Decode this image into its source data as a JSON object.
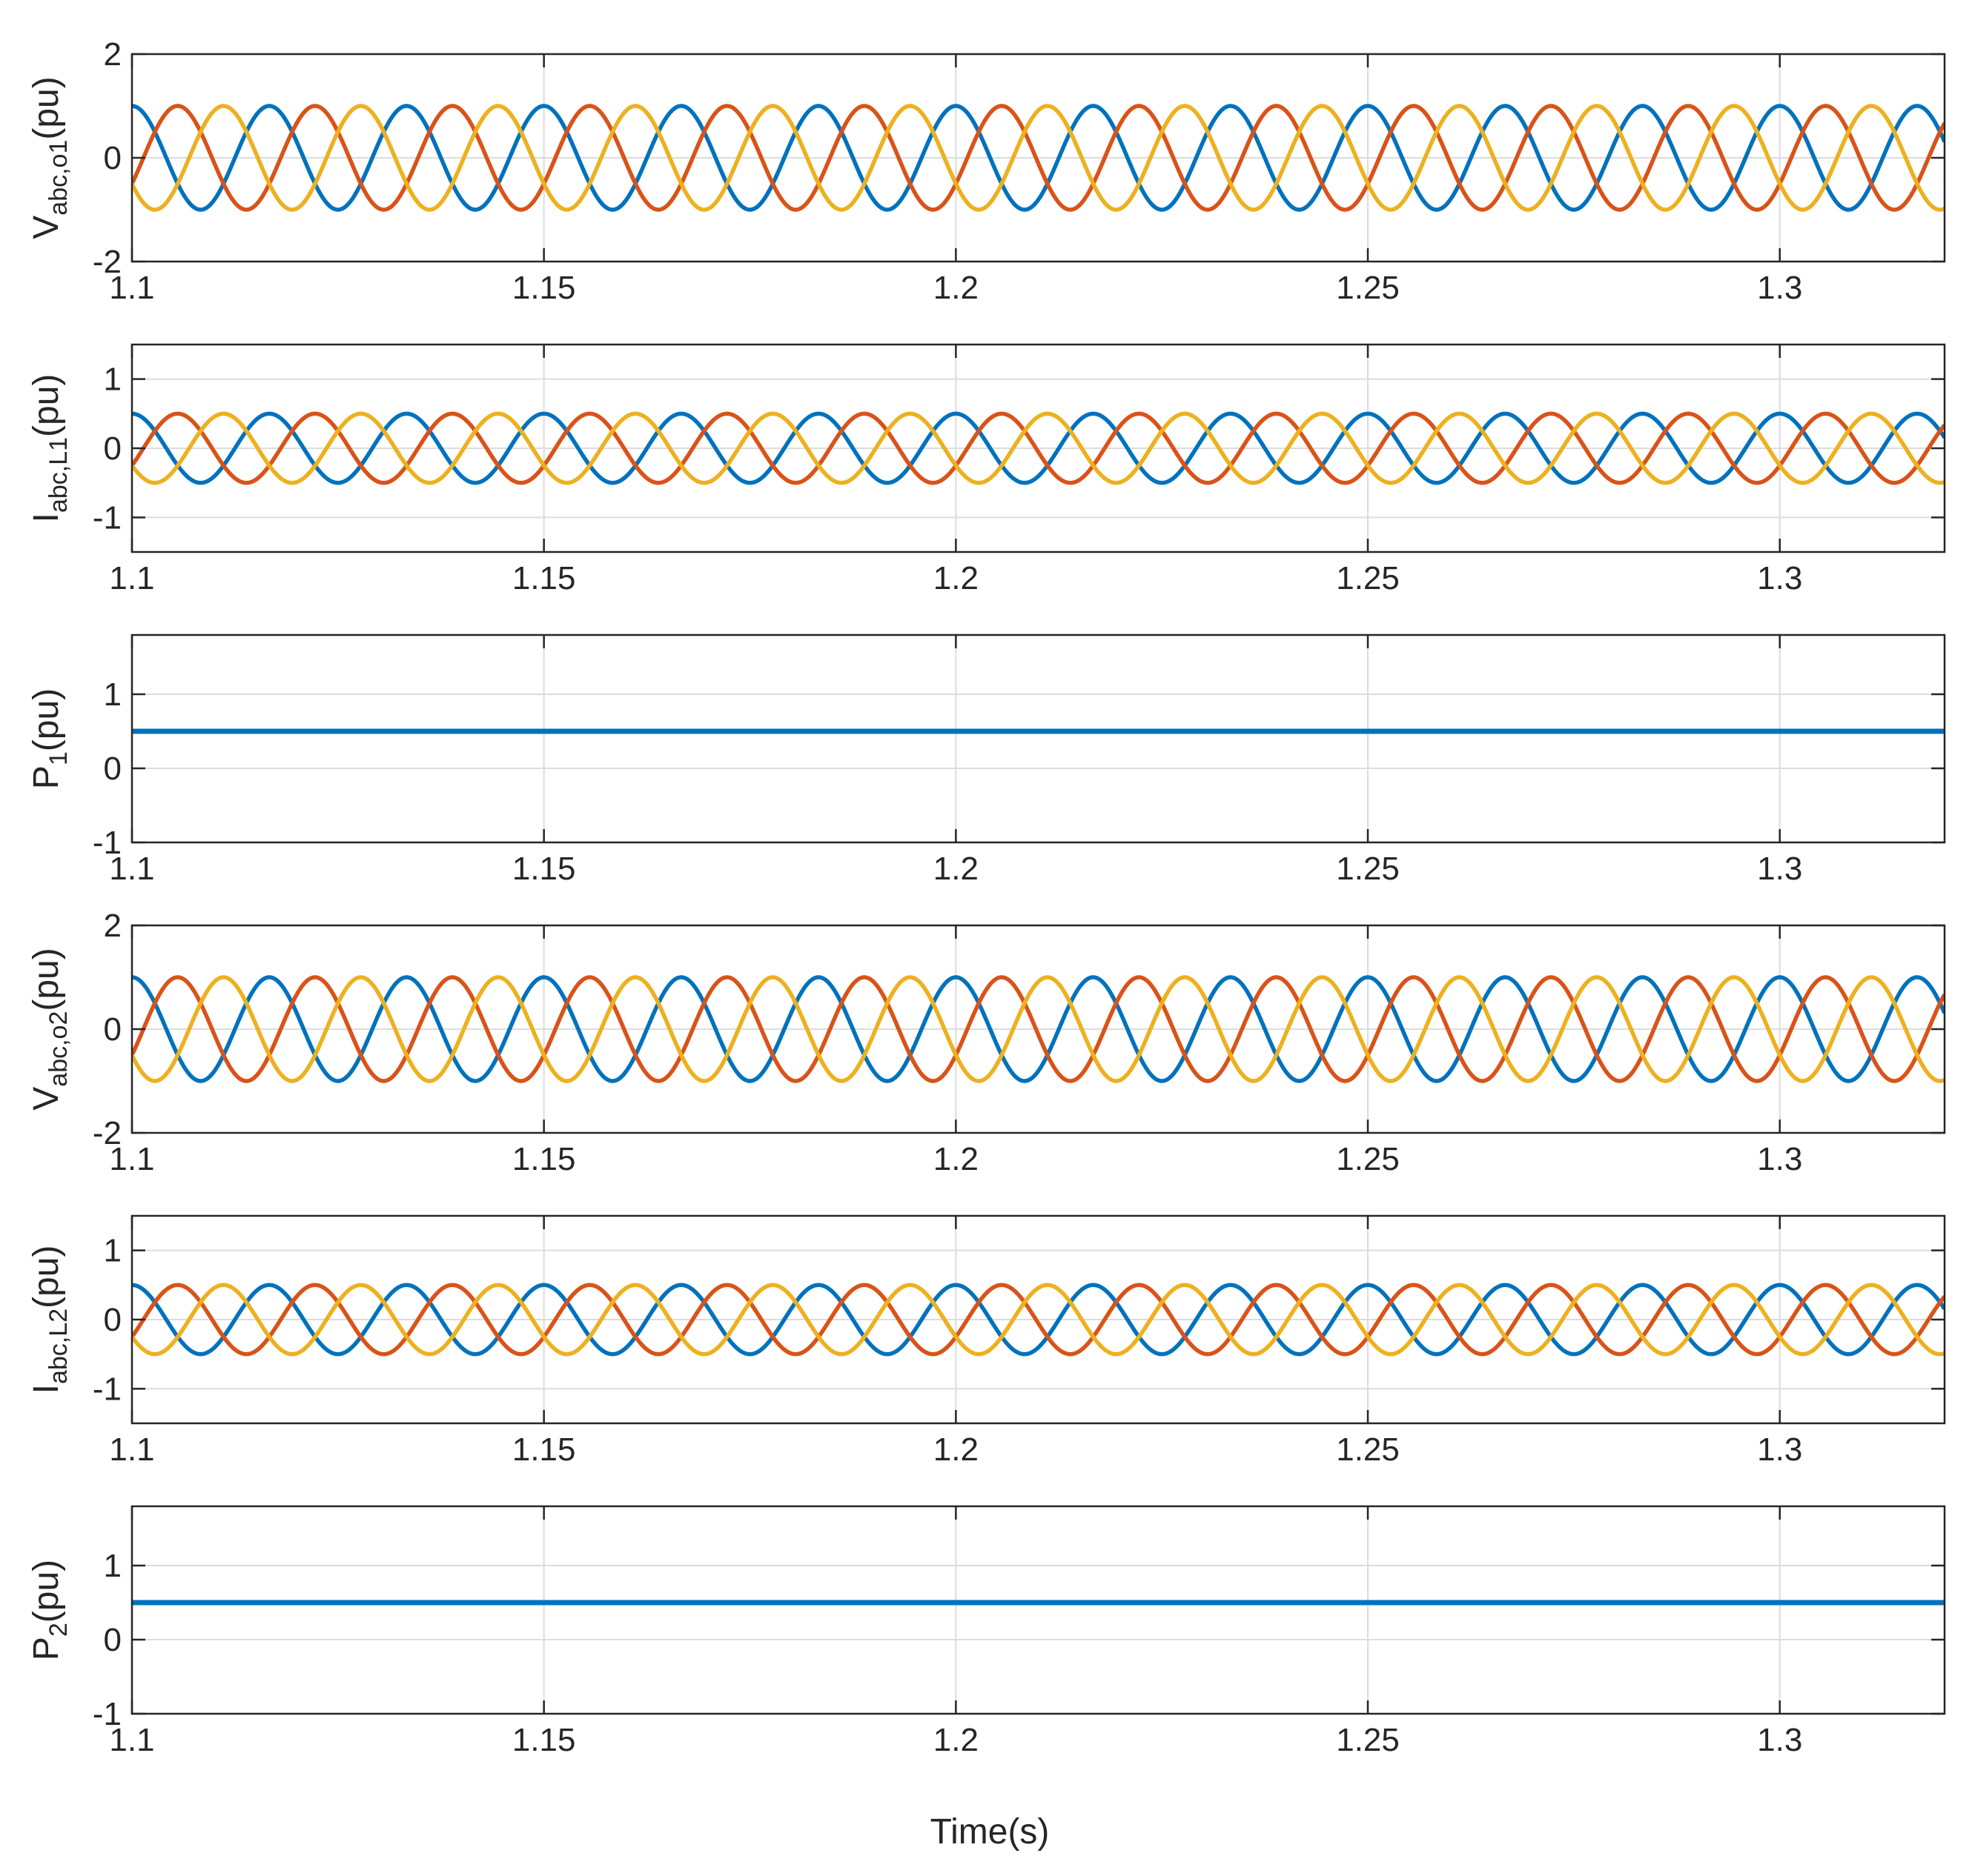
{
  "figure": {
    "xlabel": "Time(s)"
  },
  "chart_data": [
    {
      "type": "line",
      "ylabel": {
        "main": "V",
        "sub": "abc,o1",
        "tail": "(pu)"
      },
      "xlim": [
        1.1,
        1.32
      ],
      "ylim": [
        -2,
        2
      ],
      "xticks": [
        1.1,
        1.15,
        1.2,
        1.25,
        1.3
      ],
      "xtick_labels": [
        "1.1",
        "1.15",
        "1.2",
        "1.25",
        "1.3"
      ],
      "yticks": [
        -2,
        0,
        2
      ],
      "ytick_labels": [
        "-2",
        "0",
        "2"
      ],
      "grid": true,
      "legend": "none",
      "series": [
        {
          "kind": "sine",
          "amplitude": 1.0,
          "frequency_hz": 60,
          "phase_deg": 0,
          "color": "#0072BD"
        },
        {
          "kind": "sine",
          "amplitude": 1.0,
          "frequency_hz": 60,
          "phase_deg": -120,
          "color": "#D95319"
        },
        {
          "kind": "sine",
          "amplitude": 1.0,
          "frequency_hz": 60,
          "phase_deg": 120,
          "color": "#EDB120"
        }
      ]
    },
    {
      "type": "line",
      "ylabel": {
        "main": "I",
        "sub": "abc,L1",
        "tail": "(pu)"
      },
      "xlim": [
        1.1,
        1.32
      ],
      "ylim": [
        -1.5,
        1.5
      ],
      "xticks": [
        1.1,
        1.15,
        1.2,
        1.25,
        1.3
      ],
      "xtick_labels": [
        "1.1",
        "1.15",
        "1.2",
        "1.25",
        "1.3"
      ],
      "yticks": [
        -1,
        0,
        1
      ],
      "ytick_labels": [
        "-1",
        "0",
        "1"
      ],
      "grid": true,
      "legend": "none",
      "series": [
        {
          "kind": "sine",
          "amplitude": 0.5,
          "frequency_hz": 60,
          "phase_deg": 0,
          "color": "#0072BD"
        },
        {
          "kind": "sine",
          "amplitude": 0.5,
          "frequency_hz": 60,
          "phase_deg": -120,
          "color": "#D95319"
        },
        {
          "kind": "sine",
          "amplitude": 0.5,
          "frequency_hz": 60,
          "phase_deg": 120,
          "color": "#EDB120"
        }
      ]
    },
    {
      "type": "line",
      "ylabel": {
        "main": "P",
        "sub": "1",
        "tail": "(pu)"
      },
      "xlim": [
        1.1,
        1.32
      ],
      "ylim": [
        -1,
        1.8
      ],
      "xticks": [
        1.1,
        1.15,
        1.2,
        1.25,
        1.3
      ],
      "xtick_labels": [
        "1.1",
        "1.15",
        "1.2",
        "1.25",
        "1.3"
      ],
      "yticks": [
        -1,
        0,
        1
      ],
      "ytick_labels": [
        "-1",
        "0",
        "1"
      ],
      "grid": true,
      "legend": "none",
      "series": [
        {
          "kind": "constant",
          "value": 0.5,
          "color": "#0072BD"
        }
      ]
    },
    {
      "type": "line",
      "ylabel": {
        "main": "V",
        "sub": "abc,o2",
        "tail": "(pu)"
      },
      "xlim": [
        1.1,
        1.32
      ],
      "ylim": [
        -2,
        2
      ],
      "xticks": [
        1.1,
        1.15,
        1.2,
        1.25,
        1.3
      ],
      "xtick_labels": [
        "1.1",
        "1.15",
        "1.2",
        "1.25",
        "1.3"
      ],
      "yticks": [
        -2,
        0,
        2
      ],
      "ytick_labels": [
        "-2",
        "0",
        "2"
      ],
      "grid": true,
      "legend": "none",
      "series": [
        {
          "kind": "sine",
          "amplitude": 1.0,
          "frequency_hz": 60,
          "phase_deg": 0,
          "color": "#0072BD"
        },
        {
          "kind": "sine",
          "amplitude": 1.0,
          "frequency_hz": 60,
          "phase_deg": -120,
          "color": "#D95319"
        },
        {
          "kind": "sine",
          "amplitude": 1.0,
          "frequency_hz": 60,
          "phase_deg": 120,
          "color": "#EDB120"
        }
      ]
    },
    {
      "type": "line",
      "ylabel": {
        "main": "I",
        "sub": "abc,L2",
        "tail": "(pu)"
      },
      "xlim": [
        1.1,
        1.32
      ],
      "ylim": [
        -1.5,
        1.5
      ],
      "xticks": [
        1.1,
        1.15,
        1.2,
        1.25,
        1.3
      ],
      "xtick_labels": [
        "1.1",
        "1.15",
        "1.2",
        "1.25",
        "1.3"
      ],
      "yticks": [
        -1,
        0,
        1
      ],
      "ytick_labels": [
        "-1",
        "0",
        "1"
      ],
      "grid": true,
      "legend": "none",
      "series": [
        {
          "kind": "sine",
          "amplitude": 0.5,
          "frequency_hz": 60,
          "phase_deg": 0,
          "color": "#0072BD"
        },
        {
          "kind": "sine",
          "amplitude": 0.5,
          "frequency_hz": 60,
          "phase_deg": -120,
          "color": "#D95319"
        },
        {
          "kind": "sine",
          "amplitude": 0.5,
          "frequency_hz": 60,
          "phase_deg": 120,
          "color": "#EDB120"
        }
      ]
    },
    {
      "type": "line",
      "ylabel": {
        "main": "P",
        "sub": "2",
        "tail": "(pu)"
      },
      "xlim": [
        1.1,
        1.32
      ],
      "ylim": [
        -1,
        1.8
      ],
      "xticks": [
        1.1,
        1.15,
        1.2,
        1.25,
        1.3
      ],
      "xtick_labels": [
        "1.1",
        "1.15",
        "1.2",
        "1.25",
        "1.3"
      ],
      "yticks": [
        -1,
        0,
        1
      ],
      "ytick_labels": [
        "-1",
        "0",
        "1"
      ],
      "grid": true,
      "legend": "none",
      "series": [
        {
          "kind": "constant",
          "value": 0.5,
          "color": "#0072BD"
        }
      ]
    }
  ]
}
